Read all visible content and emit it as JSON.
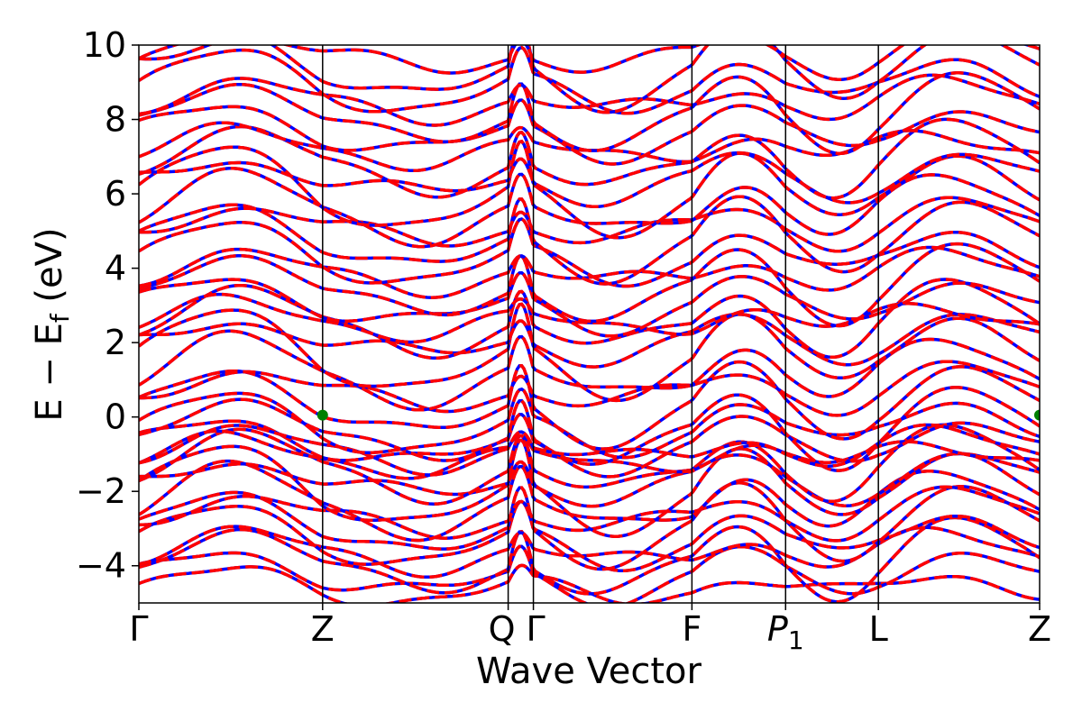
{
  "chart_data": {
    "type": "line",
    "xlabel": "Wave Vector",
    "ylabel": "E − E",
    "ylabel_sub": "f",
    "ylabel_unit": " (eV)",
    "ylim": [
      -5,
      10
    ],
    "yticks": [
      -4,
      -2,
      0,
      2,
      4,
      6,
      8,
      10
    ],
    "ytick_labels": [
      "−4",
      "−2",
      "0",
      "2",
      "4",
      "6",
      "8",
      "10"
    ],
    "xlim": [
      0,
      1
    ],
    "high_symmetry_points": [
      {
        "label": "Γ",
        "x": 0.0
      },
      {
        "label": "Z",
        "x": 0.204
      },
      {
        "label": "Q",
        "x": 0.41
      },
      {
        "label": "Γ",
        "x": 0.438
      },
      {
        "label": "F",
        "x": 0.614
      },
      {
        "label": "P",
        "sub": "1",
        "x": 0.718
      },
      {
        "label": "L",
        "x": 0.821
      },
      {
        "label": "Z",
        "x": 1.0
      }
    ],
    "grid": false,
    "series_style": [
      {
        "color": "#0000ff",
        "style": "solid",
        "role": "blue bands"
      },
      {
        "color": "#ff0000",
        "style": "dashed",
        "role": "red bands (overlaid)"
      }
    ],
    "band_count_approx": 40,
    "valence_band_max_eV": -0.2,
    "conduction_band_min_eV": 0.1,
    "markers": [
      {
        "x": 0.204,
        "y": 0.05,
        "color": "#008000"
      },
      {
        "x": 1.0,
        "y": 0.05,
        "color": "#008000"
      }
    ]
  }
}
